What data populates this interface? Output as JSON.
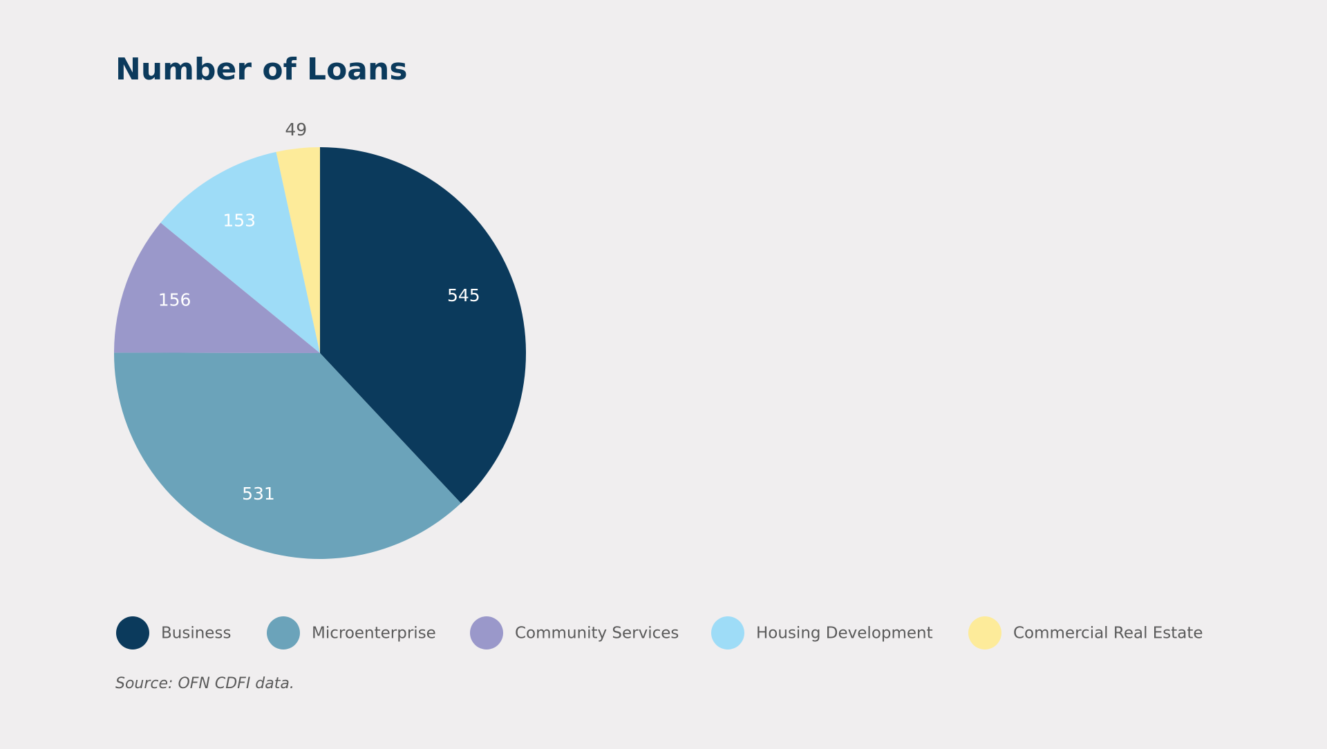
{
  "chart_data": {
    "type": "pie",
    "title": "Number of Loans",
    "categories": [
      "Business",
      "Microenterprise",
      "Community Services",
      "Housing Development",
      "Commercial Real Estate"
    ],
    "values": [
      545,
      531,
      156,
      153,
      49
    ],
    "colors": [
      "#0b3a5c",
      "#6ba3ba",
      "#9a98ca",
      "#9edcf7",
      "#fdeb9a"
    ],
    "source": "Source: OFN CDFI data."
  }
}
